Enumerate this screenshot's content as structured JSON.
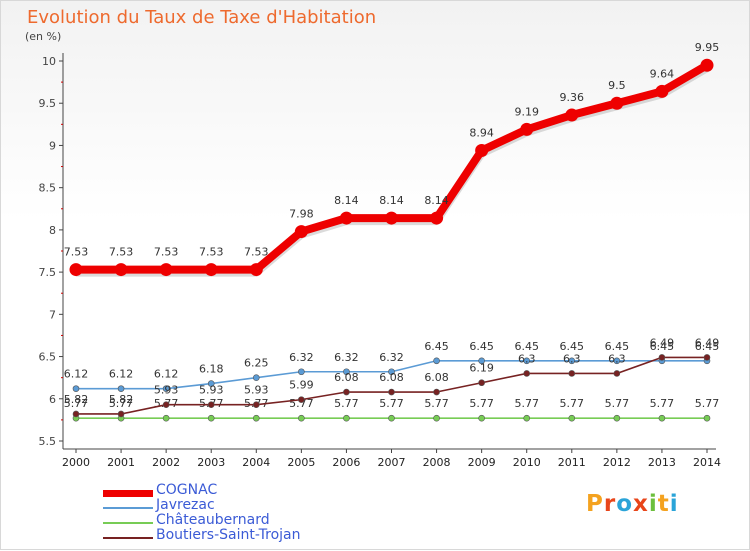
{
  "title": "Evolution du Taux de Taxe d'Habitation",
  "unit_label": "(en %)",
  "chart_data": {
    "type": "line",
    "title": "Evolution du Taux de Taxe d'Habitation",
    "ylabel": "(en %)",
    "xlabel": "",
    "x": [
      "2000",
      "2001",
      "2002",
      "2003",
      "2004",
      "2005",
      "2006",
      "2007",
      "2008",
      "2009",
      "2010",
      "2011",
      "2012",
      "2013",
      "2014"
    ],
    "ylim": [
      5.5,
      10
    ],
    "yticks": [
      "5.5",
      "6",
      "6.5",
      "7",
      "7.5",
      "8",
      "8.5",
      "9",
      "9.5",
      "10"
    ],
    "series": [
      {
        "name": "COGNAC",
        "color": "#ee0000",
        "values": [
          7.53,
          7.53,
          7.53,
          7.53,
          7.53,
          7.98,
          8.14,
          8.14,
          8.14,
          8.94,
          9.19,
          9.36,
          9.5,
          9.64,
          9.95
        ],
        "labels": [
          "7.53",
          "7.53",
          "7.53",
          "7.53",
          "7.53",
          "7.98",
          "8.14",
          "8.14",
          "8.14",
          "8.94",
          "9.19",
          "9.36",
          "9.5",
          "9.64",
          "9.95"
        ]
      },
      {
        "name": "Javrezac",
        "color": "#5b9bd5",
        "values": [
          6.12,
          6.12,
          6.12,
          6.18,
          6.25,
          6.32,
          6.32,
          6.32,
          6.45,
          6.45,
          6.45,
          6.45,
          6.45,
          6.45,
          6.45
        ],
        "labels": [
          "6.12",
          "6.12",
          "6.12",
          "6.18",
          "6.25",
          "6.32",
          "6.32",
          "6.32",
          "6.45",
          "6.45",
          "6.45",
          "6.45",
          "6.45",
          "6.45",
          "6.45"
        ]
      },
      {
        "name": "Châteaubernard",
        "color": "#77cc55",
        "values": [
          5.77,
          5.77,
          5.77,
          5.77,
          5.77,
          5.77,
          5.77,
          5.77,
          5.77,
          5.77,
          5.77,
          5.77,
          5.77,
          5.77,
          5.77
        ],
        "labels": [
          "5.77",
          "5.77",
          "5.77",
          "5.77",
          "5.77",
          "5.77",
          "5.77",
          "5.77",
          "5.77",
          "5.77",
          "5.77",
          "5.77",
          "5.77",
          "5.77",
          "5.77"
        ]
      },
      {
        "name": "Boutiers-Saint-Trojan",
        "color": "#772222",
        "values": [
          5.82,
          5.82,
          5.93,
          5.93,
          5.93,
          5.99,
          6.08,
          6.08,
          6.08,
          6.19,
          6.3,
          6.3,
          6.3,
          6.49,
          6.49
        ],
        "labels": [
          "5.82",
          "5.82",
          "5.93",
          "5.93",
          "5.93",
          "5.99",
          "6.08",
          "6.08",
          "6.08",
          "6.19",
          "6.3",
          "6.3",
          "6.3",
          "6.49",
          "6.49"
        ]
      }
    ],
    "legend_position": "bottom-left",
    "grid": false
  },
  "legend": [
    {
      "label": "COGNAC",
      "color": "#ee0000"
    },
    {
      "label": "Javrezac",
      "color": "#5b9bd5"
    },
    {
      "label": "Châteaubernard",
      "color": "#77cc55"
    },
    {
      "label": "Boutiers-Saint-Trojan",
      "color": "#772222"
    }
  ],
  "brand": {
    "letters": [
      "P",
      "r",
      "o",
      "x",
      "i",
      "t",
      "i"
    ],
    "colors": [
      "#f4a21f",
      "#e8451a",
      "#2aa4d8",
      "#e8451a",
      "#6cbf3d",
      "#f4a21f",
      "#2aa4d8"
    ]
  }
}
